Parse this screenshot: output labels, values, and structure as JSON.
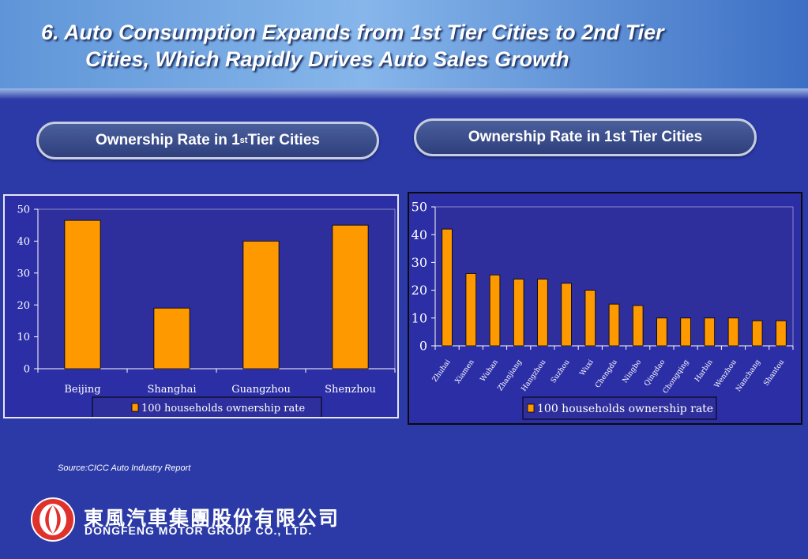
{
  "slide": {
    "title_line1": "6. Auto Consumption  Expands from 1st Tier Cities to 2nd Tier",
    "title_line2": "Cities, Which Rapidly Drives Auto Sales Growth",
    "source": "Source:CICC Auto Industry Report"
  },
  "pills": {
    "left_main": "Ownership Rate in 1",
    "left_sup": "st",
    "left_tail": " Tier Cities",
    "right": "Ownership Rate in 1st Tier Cities"
  },
  "company": {
    "name_cn": "東風汽車集團股份有限公司",
    "name_en": "DONGFENG MOTOR GROUP CO., LTD.",
    "logo_icon": "dongfeng-logo-icon"
  },
  "colors": {
    "bar": "#ff9900",
    "panel_bg": "#2c2ea6",
    "plot_bg": "#2e2e9c"
  },
  "chart_data": [
    {
      "type": "bar",
      "categories": [
        "Beijing",
        "Shanghai",
        "Guangzhou",
        "Shenzhou"
      ],
      "series": [
        {
          "name": "100 households ownership rate",
          "values": [
            46.5,
            19,
            40,
            45
          ]
        }
      ],
      "ylim": [
        0,
        50
      ],
      "yticks": [
        0,
        10,
        20,
        30,
        40,
        50
      ],
      "legend": "bottom",
      "grid": false
    },
    {
      "type": "bar",
      "categories": [
        "Zhuhai",
        "Xiamen",
        "Wuhan",
        "Zhanjiang",
        "Hangzhou",
        "Suzhou",
        "Wuxi",
        "Chengdu",
        "Ningbo",
        "Qingdao",
        "Chongqing",
        "Harbin",
        "Wenzhou",
        "Nanchang",
        "Shantou"
      ],
      "series": [
        {
          "name": "100 households ownership rate",
          "values": [
            42,
            26,
            25.5,
            24,
            24,
            22.5,
            20,
            15,
            14.5,
            10,
            10,
            10,
            10,
            9,
            9
          ]
        }
      ],
      "ylim": [
        0,
        50
      ],
      "yticks": [
        0,
        10,
        20,
        30,
        40,
        50
      ],
      "legend": "bottom",
      "grid": false
    }
  ]
}
